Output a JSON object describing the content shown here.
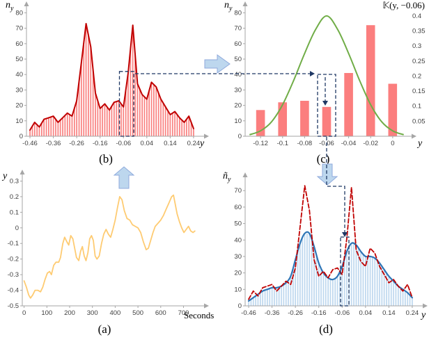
{
  "colors": {
    "connector": "#1F3864",
    "arrowfill": "#BDD7EE",
    "arrowedge": "#8FAADC",
    "axis": "#A6A6A6"
  },
  "captions": {
    "a": "(a)",
    "b": "(b)",
    "c": "(c)",
    "d": "(d)"
  },
  "chart_data": [
    {
      "id": "a",
      "type": "line",
      "title": "",
      "xlabel": "Seconds",
      "ylabel": {
        "main": "y",
        "sub": ""
      },
      "xlim": [
        -8,
        775
      ],
      "ylim": [
        -0.5,
        0.32
      ],
      "xticks": {
        "values": [
          0,
          100,
          200,
          300,
          400,
          500,
          600,
          700
        ],
        "labels": [
          "0",
          "100",
          "200",
          "300",
          "400",
          "500",
          "600",
          "700"
        ]
      },
      "yticks": {
        "values": [
          -0.5,
          -0.4,
          -0.3,
          -0.2,
          -0.1,
          0,
          0.1,
          0.2,
          0.3
        ],
        "labels": [
          "-0.5",
          "-0.4",
          "-0.3",
          "-0.2",
          "-0.1",
          "0",
          "0.1",
          "0.2",
          "0.3"
        ]
      },
      "lines": [
        {
          "name": "raw-signal",
          "color": "#FECB72",
          "width": 1.8,
          "smooth": false,
          "points": [
            [
              0,
              -0.34
            ],
            [
              10,
              -0.38
            ],
            [
              20,
              -0.43
            ],
            [
              28,
              -0.45
            ],
            [
              38,
              -0.43
            ],
            [
              48,
              -0.4
            ],
            [
              60,
              -0.4
            ],
            [
              72,
              -0.41
            ],
            [
              82,
              -0.38
            ],
            [
              92,
              -0.33
            ],
            [
              102,
              -0.29
            ],
            [
              112,
              -0.28
            ],
            [
              120,
              -0.3
            ],
            [
              130,
              -0.24
            ],
            [
              140,
              -0.22
            ],
            [
              152,
              -0.22
            ],
            [
              160,
              -0.19
            ],
            [
              170,
              -0.1
            ],
            [
              178,
              -0.06
            ],
            [
              188,
              -0.09
            ],
            [
              196,
              -0.11
            ],
            [
              205,
              -0.05
            ],
            [
              214,
              -0.07
            ],
            [
              222,
              -0.13
            ],
            [
              230,
              -0.19
            ],
            [
              240,
              -0.21
            ],
            [
              248,
              -0.15
            ],
            [
              256,
              -0.12
            ],
            [
              264,
              -0.18
            ],
            [
              272,
              -0.21
            ],
            [
              280,
              -0.16
            ],
            [
              288,
              -0.07
            ],
            [
              296,
              -0.05
            ],
            [
              304,
              -0.08
            ],
            [
              312,
              -0.18
            ],
            [
              320,
              -0.2
            ],
            [
              330,
              -0.18
            ],
            [
              340,
              -0.1
            ],
            [
              350,
              -0.04
            ],
            [
              360,
              -0.01
            ],
            [
              370,
              -0.04
            ],
            [
              380,
              -0.06
            ],
            [
              390,
              -0.01
            ],
            [
              400,
              0.05
            ],
            [
              410,
              0.13
            ],
            [
              420,
              0.2
            ],
            [
              430,
              0.18
            ],
            [
              440,
              0.11
            ],
            [
              452,
              0.06
            ],
            [
              464,
              0.05
            ],
            [
              476,
              0.02
            ],
            [
              488,
              0.01
            ],
            [
              500,
              0.0
            ],
            [
              512,
              -0.03
            ],
            [
              524,
              -0.09
            ],
            [
              536,
              -0.14
            ],
            [
              546,
              -0.13
            ],
            [
              556,
              -0.08
            ],
            [
              566,
              -0.03
            ],
            [
              576,
              0.01
            ],
            [
              588,
              0.03
            ],
            [
              600,
              0.05
            ],
            [
              612,
              0.08
            ],
            [
              624,
              0.12
            ],
            [
              636,
              0.16
            ],
            [
              648,
              0.2
            ],
            [
              656,
              0.21
            ],
            [
              664,
              0.15
            ],
            [
              672,
              0.09
            ],
            [
              682,
              0.04
            ],
            [
              692,
              0.0
            ],
            [
              702,
              -0.03
            ],
            [
              712,
              -0.01
            ],
            [
              722,
              0.01
            ],
            [
              732,
              -0.02
            ],
            [
              742,
              -0.03
            ],
            [
              750,
              -0.02
            ]
          ]
        }
      ]
    },
    {
      "id": "b",
      "type": "histogram-line",
      "title": "",
      "xlabel": "y",
      "ylabel": {
        "main": "n",
        "sub": "y"
      },
      "xlim": [
        -0.475,
        0.27
      ],
      "ylim": [
        0,
        82
      ],
      "xticks": {
        "values": [
          -0.46,
          -0.36,
          -0.26,
          -0.16,
          -0.06,
          0.04,
          0.14,
          0.24
        ],
        "labels": [
          "-0.46",
          "-0.36",
          "-0.26",
          "-0.16",
          "-0.06",
          "0.04",
          "0.14",
          "0.24"
        ]
      },
      "yticks": {
        "values": [
          0,
          10,
          20,
          30,
          40,
          50,
          60,
          70,
          80
        ],
        "labels": [
          "0",
          "10",
          "20",
          "30",
          "40",
          "50",
          "60",
          "70",
          "80"
        ]
      },
      "x": [
        -0.46,
        -0.44,
        -0.42,
        -0.4,
        -0.38,
        -0.36,
        -0.34,
        -0.32,
        -0.3,
        -0.28,
        -0.26,
        -0.24,
        -0.22,
        -0.2,
        -0.18,
        -0.16,
        -0.14,
        -0.12,
        -0.1,
        -0.08,
        -0.06,
        -0.04,
        -0.02,
        0,
        0.02,
        0.04,
        0.06,
        0.08,
        0.1,
        0.12,
        0.14,
        0.16,
        0.18,
        0.2,
        0.22,
        0.24
      ],
      "lines": [
        {
          "name": "histogram-envelope",
          "color": "#C00000",
          "width": 2,
          "smooth": false,
          "values": [
            4,
            9,
            6,
            11,
            12,
            13,
            9,
            12,
            15,
            13,
            23,
            48,
            73,
            58,
            28,
            18,
            21,
            17,
            22,
            23,
            19,
            41,
            72,
            34,
            27,
            24,
            35,
            32,
            24,
            19,
            14,
            16,
            12,
            9,
            13,
            5
          ]
        }
      ],
      "stripes": {
        "from": 0,
        "pitch": 0.01,
        "color": "#F9807F"
      }
    },
    {
      "id": "c",
      "type": "bar-kernel",
      "title": "𝕂(y, −0.06)",
      "xlabel": "y",
      "ylabel": {
        "main": "n",
        "sub": "y"
      },
      "center": -0.06,
      "xlim": [
        -0.134,
        0.014
      ],
      "ylim": [
        0,
        82
      ],
      "xticks": {
        "values": [
          -0.12,
          -0.1,
          -0.08,
          -0.06,
          -0.04,
          -0.02,
          0
        ],
        "labels": [
          "-0.12",
          "-0.1",
          "-0.08",
          "-0.06",
          "-0.04",
          "-0.02",
          "0"
        ]
      },
      "yticks": {
        "values": [
          0,
          10,
          20,
          30,
          40,
          50,
          60,
          70,
          80
        ],
        "labels": [
          "0",
          "10",
          "20",
          "30",
          "40",
          "50",
          "60",
          "70",
          "80"
        ]
      },
      "right_axis": {
        "scale": 195,
        "ticks": [
          0.4,
          0.35,
          0.3,
          0.25,
          0.2,
          0.15,
          0.1,
          0.05
        ],
        "labels": [
          "0.4",
          "0.35",
          "0.3",
          "0.25",
          "0.2",
          "0.15",
          "0.1",
          "0.05"
        ]
      },
      "bars": {
        "x": [
          -0.12,
          -0.1,
          -0.08,
          -0.06,
          -0.04,
          -0.02,
          0
        ],
        "values": [
          17,
          22,
          23,
          19,
          41,
          72,
          34
        ],
        "width": 0.008,
        "color": "#FB7E7E"
      },
      "kernel": {
        "color": "#70AD47",
        "width": 2,
        "smooth": true,
        "points": [
          [
            -0.13,
            0.005
          ],
          [
            -0.12,
            0.018
          ],
          [
            -0.11,
            0.048
          ],
          [
            -0.1,
            0.105
          ],
          [
            -0.09,
            0.185
          ],
          [
            -0.08,
            0.275
          ],
          [
            -0.07,
            0.355
          ],
          [
            -0.06,
            0.4
          ],
          [
            -0.05,
            0.355
          ],
          [
            -0.04,
            0.275
          ],
          [
            -0.03,
            0.185
          ],
          [
            -0.02,
            0.105
          ],
          [
            -0.01,
            0.048
          ],
          [
            0,
            0.018
          ],
          [
            0.01,
            0.005
          ]
        ]
      }
    },
    {
      "id": "d",
      "type": "histogram-lines",
      "title": "",
      "xlabel": "y",
      "ylabel": {
        "main": "ñ",
        "sub": "y"
      },
      "xlim": [
        -0.475,
        0.27
      ],
      "ylim": [
        0,
        76
      ],
      "xticks": {
        "values": [
          -0.46,
          -0.36,
          -0.26,
          -0.16,
          -0.06,
          0.04,
          0.14,
          0.24
        ],
        "labels": [
          "-0.46",
          "-0.36",
          "-0.26",
          "-0.16",
          "-0.06",
          "0.04",
          "0.14",
          "0.24"
        ]
      },
      "yticks": {
        "values": [
          0,
          10,
          20,
          30,
          40,
          50,
          60,
          70
        ],
        "labels": [
          "0",
          "10",
          "20",
          "30",
          "40",
          "50",
          "60",
          "70"
        ]
      },
      "x": [
        -0.46,
        -0.44,
        -0.42,
        -0.4,
        -0.38,
        -0.36,
        -0.34,
        -0.32,
        -0.3,
        -0.28,
        -0.26,
        -0.24,
        -0.22,
        -0.2,
        -0.18,
        -0.16,
        -0.14,
        -0.12,
        -0.1,
        -0.08,
        -0.06,
        -0.04,
        -0.02,
        0,
        0.02,
        0.04,
        0.06,
        0.08,
        0.1,
        0.12,
        0.14,
        0.16,
        0.18,
        0.2,
        0.22,
        0.24
      ],
      "lines": [
        {
          "name": "smoothed-estimate",
          "color": "#2E75B6",
          "width": 2.2,
          "smooth": true,
          "values": [
            3,
            5,
            7,
            9,
            10,
            11,
            11,
            12,
            14,
            18,
            28,
            38,
            44,
            44,
            36,
            26,
            20,
            17,
            16,
            18,
            24,
            33,
            38,
            37,
            33,
            30,
            30,
            29,
            26,
            22,
            18,
            15,
            12,
            10,
            8,
            5
          ]
        },
        {
          "name": "original-envelope",
          "color": "#C00000",
          "width": 1.8,
          "dash": "6 3",
          "smooth": false,
          "values": [
            4,
            9,
            6,
            11,
            12,
            13,
            9,
            12,
            15,
            13,
            23,
            48,
            73,
            58,
            28,
            18,
            21,
            17,
            22,
            23,
            19,
            41,
            72,
            34,
            27,
            24,
            35,
            32,
            24,
            19,
            14,
            16,
            12,
            9,
            13,
            5
          ]
        }
      ],
      "stripes": {
        "from": 0,
        "pitch": 0.01,
        "color": "#BDD7EE"
      }
    }
  ]
}
